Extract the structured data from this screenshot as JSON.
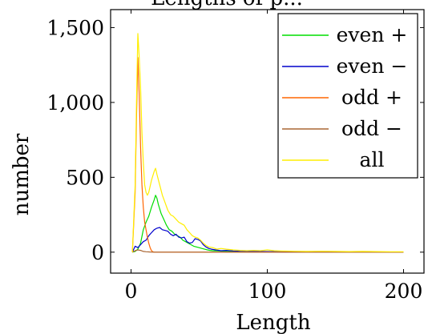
{
  "chart_data": {
    "type": "line",
    "title": "Lengths of p...",
    "xlabel": "Length",
    "ylabel": "number",
    "xlim": [
      -15,
      215
    ],
    "ylim": [
      -140,
      1620
    ],
    "xticks": [
      0,
      100,
      200
    ],
    "yticks": [
      0,
      500,
      1000,
      1500
    ],
    "x_tick_labels": [
      "0",
      "100",
      "200"
    ],
    "y_tick_labels": [
      "0",
      "500",
      "1,000",
      "1,500"
    ],
    "grid": false,
    "legend_position": "top-right",
    "series": [
      {
        "name": "even +",
        "color": "#00dd00",
        "points": [
          [
            1,
            0
          ],
          [
            3,
            5
          ],
          [
            5,
            20
          ],
          [
            7,
            60
          ],
          [
            9,
            150
          ],
          [
            11,
            200
          ],
          [
            13,
            240
          ],
          [
            15,
            300
          ],
          [
            17,
            350
          ],
          [
            18,
            380
          ],
          [
            19,
            360
          ],
          [
            20,
            320
          ],
          [
            22,
            260
          ],
          [
            24,
            220
          ],
          [
            26,
            180
          ],
          [
            28,
            150
          ],
          [
            30,
            140
          ],
          [
            32,
            120
          ],
          [
            34,
            110
          ],
          [
            36,
            100
          ],
          [
            38,
            80
          ],
          [
            40,
            70
          ],
          [
            42,
            60
          ],
          [
            44,
            50
          ],
          [
            46,
            40
          ],
          [
            48,
            35
          ],
          [
            50,
            30
          ],
          [
            52,
            25
          ],
          [
            54,
            20
          ],
          [
            56,
            15
          ],
          [
            58,
            12
          ],
          [
            60,
            10
          ],
          [
            65,
            8
          ],
          [
            70,
            5
          ],
          [
            80,
            3
          ],
          [
            90,
            2
          ],
          [
            100,
            3
          ],
          [
            110,
            2
          ],
          [
            120,
            1
          ],
          [
            140,
            1
          ],
          [
            160,
            0
          ],
          [
            180,
            0
          ],
          [
            200,
            0
          ]
        ]
      },
      {
        "name": "even −",
        "color": "#0000cc",
        "points": [
          [
            1,
            0
          ],
          [
            3,
            40
          ],
          [
            5,
            30
          ],
          [
            7,
            50
          ],
          [
            9,
            70
          ],
          [
            11,
            80
          ],
          [
            13,
            110
          ],
          [
            15,
            130
          ],
          [
            17,
            150
          ],
          [
            19,
            160
          ],
          [
            21,
            165
          ],
          [
            23,
            150
          ],
          [
            25,
            145
          ],
          [
            27,
            140
          ],
          [
            29,
            120
          ],
          [
            31,
            110
          ],
          [
            33,
            120
          ],
          [
            35,
            100
          ],
          [
            37,
            95
          ],
          [
            39,
            100
          ],
          [
            41,
            70
          ],
          [
            43,
            60
          ],
          [
            45,
            65
          ],
          [
            47,
            90
          ],
          [
            49,
            85
          ],
          [
            51,
            75
          ],
          [
            53,
            50
          ],
          [
            55,
            35
          ],
          [
            57,
            25
          ],
          [
            59,
            20
          ],
          [
            62,
            15
          ],
          [
            66,
            10
          ],
          [
            70,
            12
          ],
          [
            75,
            8
          ],
          [
            80,
            6
          ],
          [
            90,
            5
          ],
          [
            100,
            4
          ],
          [
            110,
            3
          ],
          [
            120,
            2
          ],
          [
            140,
            1
          ],
          [
            160,
            1
          ],
          [
            180,
            0
          ],
          [
            200,
            0
          ]
        ]
      },
      {
        "name": "odd +",
        "color": "#ff6600",
        "points": [
          [
            1,
            0
          ],
          [
            3,
            400
          ],
          [
            4,
            900
          ],
          [
            5,
            1300
          ],
          [
            6,
            1050
          ],
          [
            7,
            700
          ],
          [
            8,
            450
          ],
          [
            9,
            300
          ],
          [
            10,
            200
          ],
          [
            11,
            150
          ],
          [
            12,
            100
          ],
          [
            13,
            60
          ],
          [
            14,
            30
          ],
          [
            15,
            10
          ],
          [
            16,
            3
          ],
          [
            17,
            0
          ],
          [
            20,
            0
          ],
          [
            40,
            0
          ],
          [
            60,
            0
          ],
          [
            80,
            0
          ],
          [
            100,
            0
          ],
          [
            120,
            0
          ],
          [
            140,
            0
          ],
          [
            160,
            0
          ],
          [
            180,
            0
          ],
          [
            200,
            0
          ]
        ]
      },
      {
        "name": "odd −",
        "color": "#aa6633",
        "points": [
          [
            1,
            0
          ],
          [
            3,
            10
          ],
          [
            5,
            15
          ],
          [
            7,
            12
          ],
          [
            9,
            5
          ],
          [
            11,
            3
          ],
          [
            13,
            2
          ],
          [
            15,
            0
          ],
          [
            20,
            0
          ],
          [
            40,
            0
          ],
          [
            60,
            0
          ],
          [
            80,
            0
          ],
          [
            100,
            0
          ],
          [
            120,
            0
          ],
          [
            140,
            0
          ],
          [
            160,
            0
          ],
          [
            180,
            0
          ],
          [
            200,
            0
          ]
        ]
      },
      {
        "name": "all",
        "color": "#ffee00",
        "points": [
          [
            1,
            0
          ],
          [
            3,
            450
          ],
          [
            4,
            1000
          ],
          [
            5,
            1460
          ],
          [
            6,
            1300
          ],
          [
            7,
            1100
          ],
          [
            8,
            800
          ],
          [
            9,
            600
          ],
          [
            10,
            450
          ],
          [
            11,
            400
          ],
          [
            12,
            380
          ],
          [
            13,
            400
          ],
          [
            15,
            480
          ],
          [
            17,
            540
          ],
          [
            18,
            560
          ],
          [
            19,
            520
          ],
          [
            21,
            450
          ],
          [
            23,
            380
          ],
          [
            25,
            330
          ],
          [
            27,
            280
          ],
          [
            29,
            250
          ],
          [
            31,
            240
          ],
          [
            33,
            220
          ],
          [
            35,
            200
          ],
          [
            37,
            190
          ],
          [
            39,
            180
          ],
          [
            41,
            150
          ],
          [
            43,
            130
          ],
          [
            45,
            110
          ],
          [
            47,
            100
          ],
          [
            49,
            95
          ],
          [
            51,
            80
          ],
          [
            53,
            60
          ],
          [
            55,
            45
          ],
          [
            57,
            35
          ],
          [
            60,
            30
          ],
          [
            63,
            20
          ],
          [
            66,
            25
          ],
          [
            70,
            20
          ],
          [
            75,
            15
          ],
          [
            80,
            12
          ],
          [
            85,
            10
          ],
          [
            90,
            12
          ],
          [
            95,
            10
          ],
          [
            100,
            15
          ],
          [
            105,
            10
          ],
          [
            110,
            8
          ],
          [
            120,
            6
          ],
          [
            130,
            5
          ],
          [
            140,
            6
          ],
          [
            150,
            5
          ],
          [
            160,
            4
          ],
          [
            170,
            5
          ],
          [
            180,
            4
          ],
          [
            190,
            3
          ],
          [
            200,
            3
          ]
        ]
      }
    ]
  }
}
